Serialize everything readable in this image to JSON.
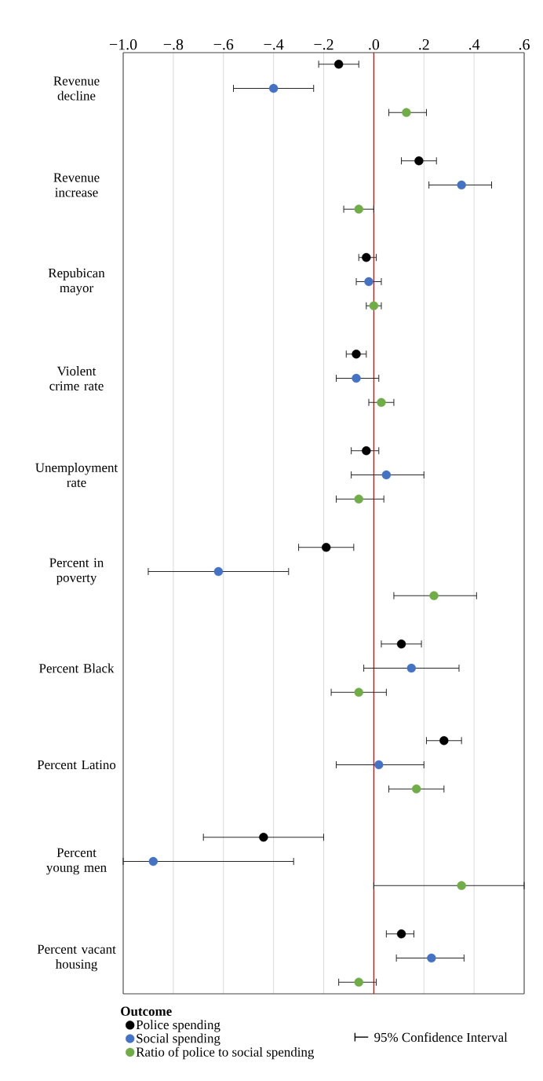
{
  "chart_data": {
    "type": "scatter",
    "orientation": "horizontal",
    "categories": [
      "Revenue decline",
      "Revenue increase",
      "Repubican mayor",
      "Violent crime rate",
      "Unemployment rate",
      "Percent in poverty",
      "Percent Black",
      "Percent Latino",
      "Percent young men",
      "Percent vacant housing"
    ],
    "series": [
      {
        "name": "Police spending",
        "color": "#000000",
        "values": [
          -0.14,
          0.18,
          -0.03,
          -0.07,
          -0.03,
          -0.19,
          0.11,
          0.28,
          -0.44,
          0.11
        ],
        "errors": [
          [
            -0.22,
            -0.06
          ],
          [
            0.11,
            0.25
          ],
          [
            -0.06,
            0.01
          ],
          [
            -0.11,
            -0.03
          ],
          [
            -0.09,
            0.02
          ],
          [
            -0.3,
            -0.08
          ],
          [
            0.03,
            0.19
          ],
          [
            0.21,
            0.35
          ],
          [
            -0.68,
            -0.2
          ],
          [
            0.05,
            0.16
          ]
        ]
      },
      {
        "name": "Social spending",
        "color": "#4472c4",
        "values": [
          -0.4,
          0.35,
          -0.02,
          -0.07,
          0.05,
          -0.62,
          0.15,
          0.02,
          -0.88,
          0.23
        ],
        "errors": [
          [
            -0.56,
            -0.24
          ],
          [
            0.22,
            0.47
          ],
          [
            -0.07,
            0.03
          ],
          [
            -0.15,
            0.02
          ],
          [
            -0.09,
            0.2
          ],
          [
            -0.9,
            -0.34
          ],
          [
            -0.04,
            0.34
          ],
          [
            -0.15,
            0.2
          ],
          [
            -1.0,
            -0.32
          ],
          [
            0.09,
            0.36
          ]
        ]
      },
      {
        "name": "Ratio of police to social spending",
        "color": "#70ad47",
        "values": [
          0.13,
          -0.06,
          0.0,
          0.03,
          -0.06,
          0.24,
          -0.06,
          0.17,
          0.35,
          -0.06
        ],
        "errors": [
          [
            0.06,
            0.21
          ],
          [
            -0.12,
            0.0
          ],
          [
            -0.03,
            0.03
          ],
          [
            -0.02,
            0.08
          ],
          [
            -0.15,
            0.04
          ],
          [
            0.08,
            0.41
          ],
          [
            -0.17,
            0.05
          ],
          [
            0.06,
            0.28
          ],
          [
            0.0,
            0.6
          ],
          [
            -0.14,
            0.01
          ]
        ]
      }
    ],
    "xlim": [
      -1.0,
      0.6
    ],
    "xticks": [
      {
        "value": -1.0,
        "label": "−1.0"
      },
      {
        "value": -0.8,
        "label": "−.8"
      },
      {
        "value": -0.6,
        "label": "−.6"
      },
      {
        "value": -0.4,
        "label": "−.4"
      },
      {
        "value": -0.2,
        "label": "−.2"
      },
      {
        "value": 0,
        "label": ".0"
      },
      {
        "value": 0.2,
        "label": ".2"
      },
      {
        "value": 0.4,
        "label": ".4"
      },
      {
        "value": 0.6,
        "label": ".6"
      }
    ],
    "grid": "x",
    "marker": "circle",
    "legend": "bottom",
    "legend_title": "Outcome",
    "ref_lines": [
      {
        "axis": "x",
        "value": 0,
        "color": "#e00000"
      }
    ],
    "annotations": [
      "95% Confidence Interval"
    ]
  }
}
